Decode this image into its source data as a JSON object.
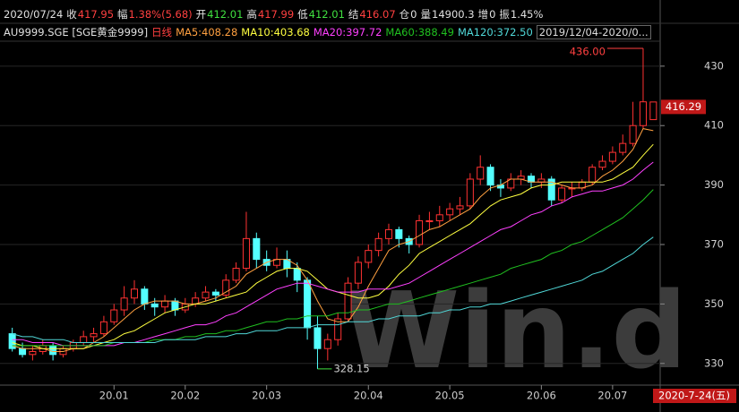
{
  "header": {
    "date": "2020/07/24",
    "fields": [
      {
        "label": "收",
        "value": "417.95",
        "color": "#ff4040"
      },
      {
        "label": "幅",
        "value": "1.38%(5.68)",
        "color": "#ff4040"
      },
      {
        "label": "开",
        "value": "412.01",
        "color": "#40e040"
      },
      {
        "label": "高",
        "value": "417.99",
        "color": "#ff4040"
      },
      {
        "label": "低",
        "value": "412.01",
        "color": "#40e040"
      },
      {
        "label": "结",
        "value": "416.07",
        "color": "#ff4040"
      },
      {
        "label": "仓",
        "value": "0",
        "color": "#e0e0e0"
      },
      {
        "label": "量",
        "value": "14900.3",
        "color": "#e0e0e0"
      },
      {
        "label": "增",
        "value": "0",
        "color": "#e0e0e0"
      },
      {
        "label": "振",
        "value": "1.45%",
        "color": "#e0e0e0"
      }
    ],
    "symbol": "AU9999.SGE [SGE黄金9999]",
    "period": "日线",
    "range": "2019/12/04-2020/0..."
  },
  "chart_data": {
    "type": "candlestick",
    "up_color": "#ff3232",
    "down_color": "#54ffff",
    "xlim": [
      -0.5,
      63.5
    ],
    "xticks": [
      {
        "value": 10,
        "label": "20.01"
      },
      {
        "value": 17,
        "label": "20.02"
      },
      {
        "value": 25,
        "label": "20.03"
      },
      {
        "value": 35,
        "label": "20.04"
      },
      {
        "value": 43,
        "label": "20.05"
      },
      {
        "value": 52,
        "label": "20.06"
      },
      {
        "value": 59,
        "label": "20.07"
      }
    ],
    "ylim": [
      322.7,
      440.2
    ],
    "yticks": [
      330,
      350,
      370,
      390,
      410,
      430
    ],
    "grid": true,
    "candles": [
      [
        340,
        342,
        334,
        335
      ],
      [
        335,
        337,
        332,
        333
      ],
      [
        333,
        336,
        331,
        334
      ],
      [
        334,
        338,
        333,
        336
      ],
      [
        336,
        337,
        331,
        333
      ],
      [
        333,
        336,
        332,
        335
      ],
      [
        335,
        338,
        334,
        337
      ],
      [
        337,
        341,
        336,
        339
      ],
      [
        339,
        342,
        337,
        340
      ],
      [
        340,
        346,
        339,
        344
      ],
      [
        344,
        350,
        343,
        348
      ],
      [
        348,
        356,
        346,
        352
      ],
      [
        352,
        358,
        350,
        355
      ],
      [
        355,
        356,
        348,
        350
      ],
      [
        350,
        352,
        346,
        349
      ],
      [
        349,
        353,
        347,
        351
      ],
      [
        351,
        352,
        346,
        348
      ],
      [
        348,
        352,
        347,
        350
      ],
      [
        350,
        354,
        349,
        352
      ],
      [
        352,
        356,
        351,
        354
      ],
      [
        354,
        355,
        351,
        353
      ],
      [
        353,
        360,
        352,
        358
      ],
      [
        358,
        364,
        357,
        362
      ],
      [
        362,
        381,
        361,
        372
      ],
      [
        372,
        374,
        362,
        365
      ],
      [
        365,
        368,
        361,
        363
      ],
      [
        363,
        369,
        362,
        365
      ],
      [
        365,
        368,
        359,
        362
      ],
      [
        362,
        364,
        354,
        358
      ],
      [
        358,
        359,
        338,
        342
      ],
      [
        342,
        346,
        328.15,
        335
      ],
      [
        335,
        340,
        331,
        338
      ],
      [
        338,
        347,
        336,
        345
      ],
      [
        345,
        359,
        344,
        357
      ],
      [
        357,
        366,
        355,
        364
      ],
      [
        364,
        370,
        362,
        368
      ],
      [
        368,
        374,
        366,
        372
      ],
      [
        372,
        377,
        370,
        375
      ],
      [
        375,
        376,
        369,
        372
      ],
      [
        372,
        373,
        367,
        370
      ],
      [
        370,
        380,
        369,
        378
      ],
      [
        378,
        381,
        375,
        378
      ],
      [
        378,
        383,
        376,
        380
      ],
      [
        380,
        384,
        378,
        382
      ],
      [
        382,
        386,
        380,
        383
      ],
      [
        383,
        394,
        382,
        392
      ],
      [
        392,
        400,
        390,
        396
      ],
      [
        396,
        397,
        388,
        390
      ],
      [
        390,
        392,
        386,
        389
      ],
      [
        389,
        394,
        388,
        392
      ],
      [
        392,
        395,
        390,
        393
      ],
      [
        393,
        394,
        389,
        391
      ],
      [
        391,
        394,
        389,
        392
      ],
      [
        392,
        393,
        383,
        385
      ],
      [
        385,
        390,
        384,
        389
      ],
      [
        389,
        391,
        386,
        389
      ],
      [
        389,
        392,
        388,
        391
      ],
      [
        391,
        397,
        390,
        396
      ],
      [
        396,
        400,
        395,
        398
      ],
      [
        398,
        403,
        397,
        401
      ],
      [
        401,
        407,
        400,
        404
      ],
      [
        404,
        418,
        403,
        410
      ],
      [
        410,
        436,
        409,
        418
      ],
      [
        412.01,
        417.99,
        412.01,
        417.95
      ]
    ],
    "series": [
      {
        "name": "MA5:408.28",
        "color": "#ffa040",
        "values": [
          336,
          335,
          335,
          335,
          334,
          334,
          335,
          335,
          337,
          339,
          342,
          345,
          348,
          350,
          351,
          351,
          351,
          350,
          350,
          351,
          352,
          354,
          356,
          360,
          362,
          364,
          365,
          365,
          363,
          358,
          351,
          345,
          344,
          344,
          349,
          356,
          362,
          368,
          370,
          371,
          373,
          375,
          376,
          378,
          380,
          382,
          386,
          389,
          390,
          392,
          392,
          391,
          391,
          391,
          390,
          389,
          389,
          390,
          393,
          395,
          398,
          402,
          409,
          408.28
        ]
      },
      {
        "name": "MA10:403.68",
        "color": "#ffff40",
        "values": [
          337,
          336,
          336,
          335,
          335,
          335,
          335,
          335,
          336,
          337,
          338,
          340,
          341,
          343,
          345,
          347,
          348,
          349,
          350,
          350,
          351,
          352,
          353,
          354,
          357,
          359,
          361,
          362,
          362,
          361,
          358,
          355,
          354,
          353,
          352,
          352,
          353,
          356,
          360,
          363,
          367,
          369,
          371,
          373,
          375,
          377,
          380,
          383,
          385,
          386,
          387,
          389,
          390,
          390,
          391,
          391,
          391,
          391,
          391,
          392,
          394,
          396,
          400,
          403.68
        ]
      },
      {
        "name": "MA20:397.72",
        "color": "#ff40ff",
        "values": [
          338,
          338,
          337,
          337,
          337,
          336,
          336,
          336,
          336,
          336,
          336,
          337,
          337,
          338,
          339,
          340,
          341,
          342,
          343,
          343,
          344,
          346,
          347,
          349,
          351,
          353,
          355,
          356,
          357,
          357,
          356,
          355,
          354,
          354,
          354,
          355,
          355,
          355,
          356,
          357,
          359,
          361,
          363,
          365,
          367,
          369,
          371,
          373,
          375,
          376,
          378,
          380,
          381,
          383,
          384,
          386,
          387,
          388,
          388,
          389,
          390,
          392,
          395,
          397.72
        ]
      },
      {
        "name": "MA60:388.49",
        "color": "#20c020",
        "values": [
          336,
          336,
          336,
          336,
          336,
          336,
          336,
          336,
          336,
          336,
          337,
          337,
          337,
          337,
          338,
          338,
          338,
          339,
          339,
          340,
          340,
          341,
          341,
          342,
          343,
          344,
          344,
          345,
          345,
          346,
          346,
          346,
          347,
          347,
          348,
          348,
          349,
          350,
          350,
          351,
          352,
          353,
          354,
          355,
          356,
          357,
          358,
          359,
          360,
          362,
          363,
          364,
          365,
          367,
          368,
          370,
          371,
          373,
          375,
          377,
          379,
          382,
          385,
          388.49
        ]
      },
      {
        "name": "MA120:372.50",
        "color": "#50d8d8",
        "values": [
          340,
          339,
          339,
          338,
          338,
          338,
          337,
          337,
          337,
          337,
          337,
          337,
          337,
          337,
          337,
          338,
          338,
          338,
          338,
          339,
          339,
          339,
          340,
          340,
          341,
          341,
          341,
          342,
          342,
          342,
          343,
          343,
          343,
          344,
          344,
          344,
          345,
          345,
          346,
          346,
          346,
          347,
          347,
          348,
          348,
          349,
          349,
          350,
          350,
          351,
          352,
          353,
          354,
          355,
          356,
          357,
          358,
          360,
          361,
          363,
          365,
          367,
          370,
          372.5
        ]
      }
    ],
    "high_mark": {
      "value": 436,
      "label": "436.00"
    },
    "low_mark": {
      "value": 328.15,
      "label": "328.15"
    },
    "last_price": 416.29,
    "current_date": "2020-7-24(五)",
    "watermark": "Win.d"
  }
}
